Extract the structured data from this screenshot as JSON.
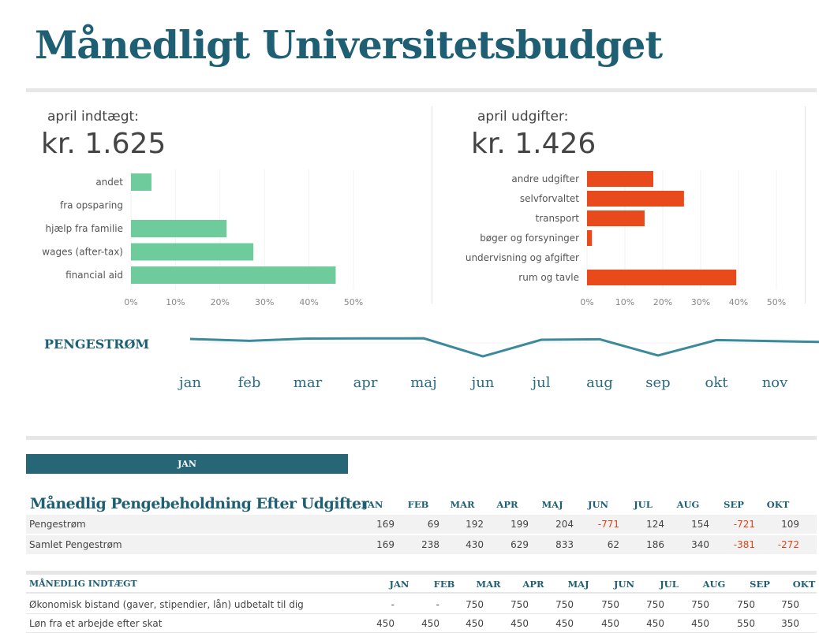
{
  "title": "Månedligt Universitetsbudget",
  "income": {
    "label": "april indtægt:",
    "total": "kr. 1.625",
    "color": "#6dcb9c",
    "chart_data": {
      "type": "bar",
      "orientation": "horizontal",
      "categories": [
        "andet",
        "fra opsparing",
        "hjælp fra familie",
        "wages (after-tax)",
        "financial aid"
      ],
      "values": [
        4.6,
        0,
        21.5,
        27.5,
        46
      ],
      "xlim": [
        0,
        50
      ],
      "ticks": [
        "0%",
        "10%",
        "20%",
        "30%",
        "40%",
        "50%"
      ]
    }
  },
  "expenses": {
    "label": "april udgifter:",
    "total": "kr. 1.426",
    "color": "#e84a1b",
    "chart_data": {
      "type": "bar",
      "orientation": "horizontal",
      "categories": [
        "andre udgifter",
        "selvforvaltet",
        "transport",
        "bøger og forsyninger",
        "undervisning og afgifter",
        "rum og tavle"
      ],
      "values": [
        17.5,
        25.6,
        15.2,
        1.3,
        0,
        39.4
      ],
      "xlim": [
        0,
        50
      ],
      "ticks": [
        "0%",
        "10%",
        "20%",
        "30%",
        "40%",
        "50%"
      ]
    }
  },
  "cashflow": {
    "label": "PENGESTRØM",
    "color": "#3a8a9c",
    "chart_data": {
      "type": "line",
      "categories": [
        "jan",
        "feb",
        "mar",
        "apr",
        "maj",
        "jun",
        "jul",
        "aug",
        "sep",
        "okt",
        "nov"
      ],
      "values": [
        169,
        69,
        192,
        199,
        204,
        -771,
        124,
        154,
        -721,
        109,
        50
      ]
    }
  },
  "month_tab": "JAN",
  "summary": {
    "title": "Månedlig Pengebeholdning Efter Udgifter",
    "months": [
      "JAN",
      "FEB",
      "MAR",
      "APR",
      "MAJ",
      "JUN",
      "JUL",
      "AUG",
      "SEP",
      "OKT"
    ],
    "rows": [
      {
        "label": "Pengestrøm",
        "values": [
          "169",
          "69",
          "192",
          "199",
          "204",
          "-771",
          "124",
          "154",
          "-721",
          "109"
        ]
      },
      {
        "label": "Samlet Pengestrøm",
        "values": [
          "169",
          "238",
          "430",
          "629",
          "833",
          "62",
          "186",
          "340",
          "-381",
          "-272"
        ]
      }
    ]
  },
  "income_table": {
    "title": "MÅNEDLIG INDTÆGT",
    "months": [
      "JAN",
      "FEB",
      "MAR",
      "APR",
      "MAJ",
      "JUN",
      "JUL",
      "AUG",
      "SEP",
      "OKT"
    ],
    "rows": [
      {
        "label": "Økonomisk bistand (gaver, stipendier, lån) udbetalt til dig",
        "values": [
          "-",
          "-",
          "750",
          "750",
          "750",
          "750",
          "750",
          "750",
          "750",
          "750"
        ]
      },
      {
        "label": "Løn fra et arbejde efter skat",
        "values": [
          "450",
          "450",
          "450",
          "450",
          "450",
          "450",
          "450",
          "450",
          "550",
          "350"
        ]
      }
    ]
  },
  "negative_color": "#e0451a"
}
